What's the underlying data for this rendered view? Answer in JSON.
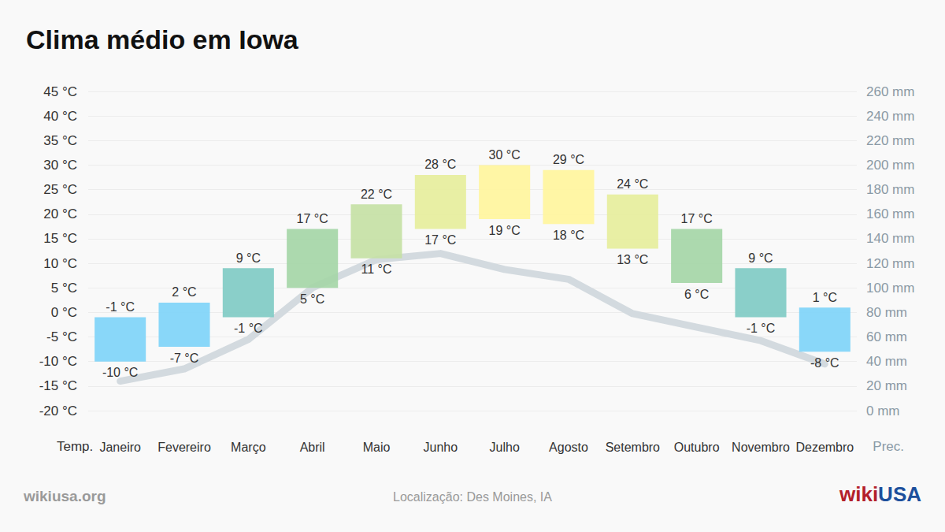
{
  "chart_data": {
    "type": "range_bar",
    "title": "Clima médio em Iowa",
    "categories": [
      "Janeiro",
      "Fevereiro",
      "Março",
      "Abril",
      "Maio",
      "Junho",
      "Julho",
      "Agosto",
      "Setembro",
      "Outubro",
      "Novembro",
      "Dezembro"
    ],
    "series": [
      {
        "type": "range_bar",
        "high": [
          -1,
          2,
          9,
          17,
          22,
          28,
          30,
          29,
          24,
          17,
          9,
          1
        ],
        "low": [
          -10,
          -7,
          -1,
          5,
          11,
          17,
          19,
          18,
          13,
          6,
          -1,
          -8
        ],
        "high_labels": [
          "-1 °C",
          "2 °C",
          "9 °C",
          "17 °C",
          "22 °C",
          "28 °C",
          "30 °C",
          "29 °C",
          "24 °C",
          "17 °C",
          "9 °C",
          "1 °C"
        ],
        "low_labels": [
          "-10 °C",
          "-7 °C",
          "-1 °C",
          "5 °C",
          "11 °C",
          "17 °C",
          "19 °C",
          "18 °C",
          "13 °C",
          "6 °C",
          "-1 °C",
          "-8 °C"
        ],
        "colors": [
          "#7fd4f8",
          "#7fd4f8",
          "#80cbc4",
          "#a5d6a7",
          "#c5e1a5",
          "#e6ee9c",
          "#fff59d",
          "#fff59d",
          "#e6ee9c",
          "#a5d6a7",
          "#80cbc4",
          "#7fd4f8"
        ]
      },
      {
        "type": "line",
        "axis": "y2",
        "color": "#d3dadf",
        "values": [
          24,
          34,
          58,
          100,
          123,
          128,
          115,
          107,
          79,
          68,
          57,
          38
        ]
      }
    ],
    "ylabel": "Temp.",
    "y2label": "Prec.",
    "ylim": [
      -20,
      45
    ],
    "yticks": [
      {
        "value": -20,
        "label": "-20 °C"
      },
      {
        "value": -15,
        "label": "-15 °C"
      },
      {
        "value": -10,
        "label": "-10 °C"
      },
      {
        "value": -5,
        "label": "-5 °C"
      },
      {
        "value": 0,
        "label": "0 °C"
      },
      {
        "value": 5,
        "label": "5 °C"
      },
      {
        "value": 10,
        "label": "10 °C"
      },
      {
        "value": 15,
        "label": "15 °C"
      },
      {
        "value": 20,
        "label": "20 °C"
      },
      {
        "value": 25,
        "label": "25 °C"
      },
      {
        "value": 30,
        "label": "30 °C"
      },
      {
        "value": 35,
        "label": "35 °C"
      },
      {
        "value": 40,
        "label": "40 °C"
      },
      {
        "value": 45,
        "label": "45 °C"
      }
    ],
    "y2lim": [
      0,
      260
    ],
    "y2ticks": [
      {
        "value": 0,
        "label": "0 mm"
      },
      {
        "value": 20,
        "label": "20 mm"
      },
      {
        "value": 40,
        "label": "40 mm"
      },
      {
        "value": 60,
        "label": "60 mm"
      },
      {
        "value": 80,
        "label": "80 mm"
      },
      {
        "value": 100,
        "label": "100 mm"
      },
      {
        "value": 120,
        "label": "120 mm"
      },
      {
        "value": 140,
        "label": "140 mm"
      },
      {
        "value": 160,
        "label": "160 mm"
      },
      {
        "value": 180,
        "label": "180 mm"
      },
      {
        "value": 200,
        "label": "200 mm"
      },
      {
        "value": 220,
        "label": "220 mm"
      },
      {
        "value": 240,
        "label": "240 mm"
      },
      {
        "value": 260,
        "label": "260 mm"
      }
    ],
    "grid": true,
    "data_labels": true,
    "annotations": {
      "source": "wikiusa.org",
      "location": "Localização: Des Moines, IA",
      "brand": {
        "parts": [
          "wiki",
          "USA"
        ],
        "colors": [
          "#b3202a",
          "#1c4f9c"
        ]
      }
    }
  }
}
